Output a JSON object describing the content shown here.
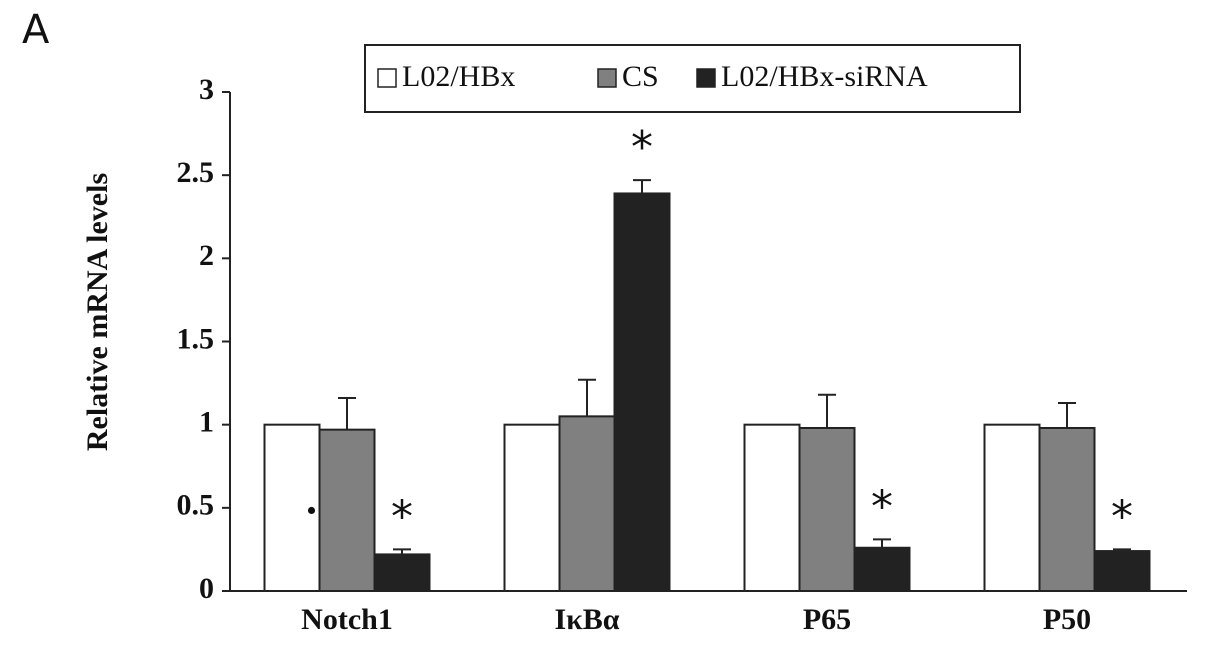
{
  "panel_label": "A",
  "chart_data": {
    "type": "bar",
    "ylabel": "Relative mRNA levels",
    "categories": [
      "Notch1",
      "IκBα",
      "P65",
      "P50"
    ],
    "series": [
      {
        "name": "L02/HBx",
        "color": "#ffffff",
        "values": [
          1.0,
          1.0,
          1.0,
          1.0
        ],
        "annotations": [
          "•",
          null,
          null,
          null
        ]
      },
      {
        "name": "CS",
        "color": "#808080",
        "values": [
          0.97,
          1.05,
          0.98,
          0.98
        ],
        "errors": [
          0.19,
          0.22,
          0.2,
          0.15
        ]
      },
      {
        "name": "L02/HBx-siRNA",
        "color": "#222222",
        "values": [
          0.22,
          2.39,
          0.26,
          0.24
        ],
        "errors": [
          0.03,
          0.08,
          0.05,
          0.01
        ],
        "annotations": [
          "*",
          "*",
          "*",
          "*"
        ]
      }
    ],
    "ylim": [
      0,
      3
    ],
    "yticks": [
      0,
      0.5,
      1,
      1.5,
      2,
      2.5,
      3
    ],
    "grid": false
  }
}
